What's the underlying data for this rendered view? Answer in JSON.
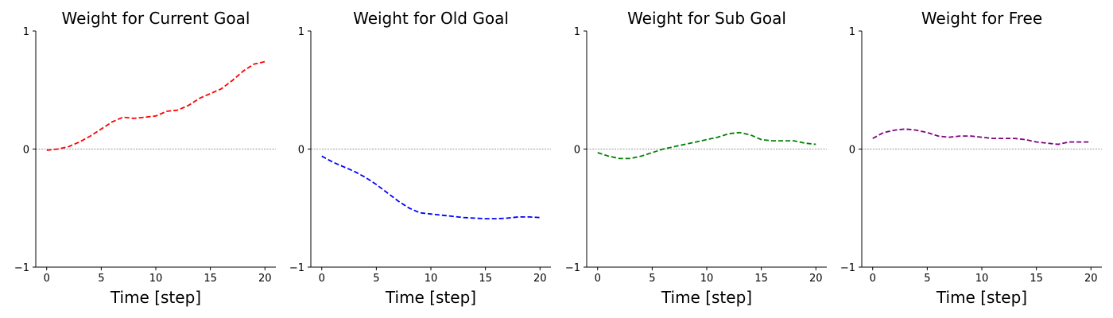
{
  "chart_data": [
    {
      "type": "line",
      "title": "Weight for Current Goal",
      "xlabel": "Time [step]",
      "ylabel": "",
      "xlim": [
        -1,
        21
      ],
      "ylim": [
        -1,
        1
      ],
      "xticks": [
        0,
        5,
        10,
        15,
        20
      ],
      "yticks": [
        -1,
        0,
        1
      ],
      "color": "#ff0000",
      "x": [
        0,
        1,
        2,
        3,
        4,
        5,
        6,
        7,
        8,
        9,
        10,
        11,
        12,
        13,
        14,
        15,
        16,
        17,
        18,
        19,
        20
      ],
      "y": [
        -0.01,
        0.0,
        0.02,
        0.06,
        0.11,
        0.17,
        0.23,
        0.27,
        0.26,
        0.27,
        0.28,
        0.32,
        0.33,
        0.37,
        0.43,
        0.47,
        0.51,
        0.58,
        0.66,
        0.72,
        0.74
      ]
    },
    {
      "type": "line",
      "title": "Weight for Old Goal",
      "xlabel": "Time [step]",
      "ylabel": "",
      "xlim": [
        -1,
        21
      ],
      "ylim": [
        -1,
        1
      ],
      "xticks": [
        0,
        5,
        10,
        15,
        20
      ],
      "yticks": [
        -1,
        0,
        1
      ],
      "color": "#0000ff",
      "x": [
        0,
        1,
        2,
        3,
        4,
        5,
        6,
        7,
        8,
        9,
        10,
        11,
        12,
        13,
        14,
        15,
        16,
        17,
        18,
        19,
        20
      ],
      "y": [
        -0.06,
        -0.11,
        -0.15,
        -0.19,
        -0.24,
        -0.3,
        -0.37,
        -0.44,
        -0.5,
        -0.54,
        -0.55,
        -0.56,
        -0.57,
        -0.58,
        -0.585,
        -0.59,
        -0.59,
        -0.585,
        -0.575,
        -0.575,
        -0.58
      ]
    },
    {
      "type": "line",
      "title": "Weight for Sub Goal",
      "xlabel": "Time [step]",
      "ylabel": "",
      "xlim": [
        -1,
        21
      ],
      "ylim": [
        -1,
        1
      ],
      "xticks": [
        0,
        5,
        10,
        15,
        20
      ],
      "yticks": [
        -1,
        0,
        1
      ],
      "color": "#008000",
      "x": [
        0,
        1,
        2,
        3,
        4,
        5,
        6,
        7,
        8,
        9,
        10,
        11,
        12,
        13,
        14,
        15,
        16,
        17,
        18,
        19,
        20
      ],
      "y": [
        -0.03,
        -0.06,
        -0.08,
        -0.08,
        -0.06,
        -0.03,
        0.0,
        0.02,
        0.04,
        0.06,
        0.08,
        0.1,
        0.13,
        0.14,
        0.12,
        0.08,
        0.07,
        0.07,
        0.07,
        0.05,
        0.04
      ]
    },
    {
      "type": "line",
      "title": "Weight for Free",
      "xlabel": "Time [step]",
      "ylabel": "",
      "xlim": [
        -1,
        21
      ],
      "ylim": [
        -1,
        1
      ],
      "xticks": [
        0,
        5,
        10,
        15,
        20
      ],
      "yticks": [
        -1,
        0,
        1
      ],
      "color": "#800080",
      "x": [
        0,
        1,
        2,
        3,
        4,
        5,
        6,
        7,
        8,
        9,
        10,
        11,
        12,
        13,
        14,
        15,
        16,
        17,
        18,
        19,
        20
      ],
      "y": [
        0.09,
        0.14,
        0.16,
        0.17,
        0.16,
        0.14,
        0.11,
        0.1,
        0.11,
        0.11,
        0.1,
        0.09,
        0.09,
        0.09,
        0.08,
        0.06,
        0.05,
        0.04,
        0.06,
        0.06,
        0.06
      ]
    }
  ]
}
